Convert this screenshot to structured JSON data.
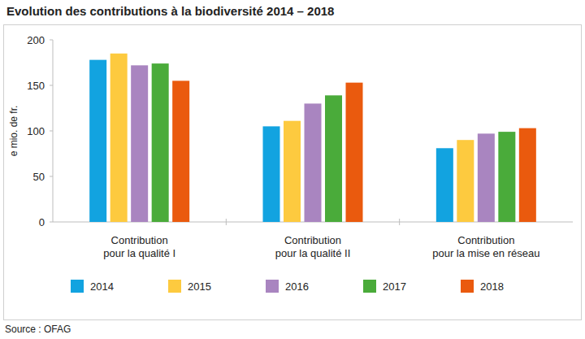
{
  "chart_data": {
    "type": "bar",
    "title": "Evolution des contributions à la biodiversité 2014 – 2018",
    "y_label": "e mio. de fr.",
    "source": "Source : OFAG",
    "categories": [
      "Contribution\npour la qualité I",
      "Contribution\npour la qualité II",
      "Contribution\npour la mise en réseau"
    ],
    "series": [
      {
        "name": "2014",
        "color": "#12a3e0",
        "values": [
          178,
          105,
          81
        ]
      },
      {
        "name": "2015",
        "color": "#fdca3f",
        "values": [
          185,
          111,
          90
        ]
      },
      {
        "name": "2016",
        "color": "#a985c0",
        "values": [
          172,
          130,
          97
        ]
      },
      {
        "name": "2017",
        "color": "#4aab3a",
        "values": [
          174,
          139,
          99
        ]
      },
      {
        "name": "2018",
        "color": "#ea5a0e",
        "values": [
          155,
          153,
          103
        ]
      }
    ],
    "ylim": [
      0,
      200
    ],
    "yticks": [
      0,
      50,
      100,
      150,
      200
    ],
    "grid": false,
    "legend": "bottom",
    "data_labels": false
  }
}
